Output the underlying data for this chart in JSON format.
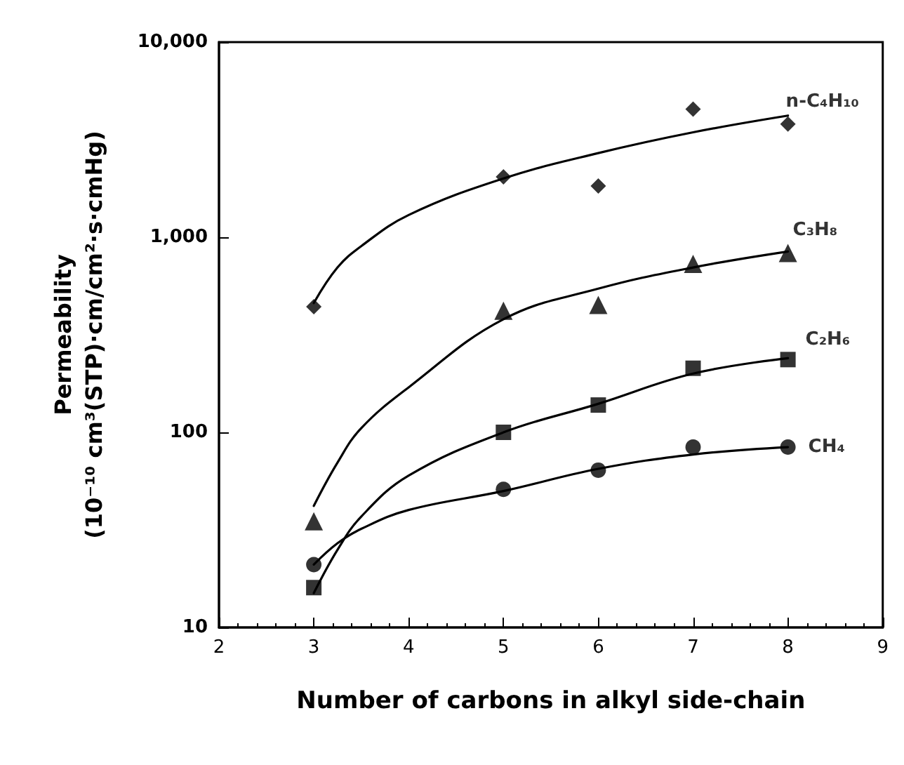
{
  "chart_data": {
    "type": "scatter",
    "xlabel": "Number of carbons in alkyl side-chain",
    "ylabel": "Permeability\n(10⁻¹⁰ cm³(STP)·cm/cm²·s·cmHg)",
    "log": "y",
    "grid": false,
    "legend": false,
    "xlim": [
      2,
      9
    ],
    "xticks": [
      2,
      3,
      4,
      5,
      6,
      7,
      8,
      9
    ],
    "ylim": [
      10,
      10000
    ],
    "yticks": [
      10,
      100,
      {
        "value": 1000,
        "label": "1,000"
      },
      {
        "value": 10000,
        "label": "10,000"
      }
    ],
    "series": [
      {
        "name": "n-C₄H₁₀",
        "marker": "diamond",
        "color": "#000000",
        "x": [
          3,
          5,
          6,
          7,
          8
        ],
        "values": [
          440,
          2040,
          1830,
          4530,
          3800
        ]
      },
      {
        "name": "C₃H₈",
        "marker": "triangle",
        "color": "#000000",
        "x": [
          3,
          5,
          6,
          7,
          8
        ],
        "values": [
          35,
          420,
          450,
          730,
          830
        ]
      },
      {
        "name": "C₂H₆",
        "marker": "square",
        "color": "#000000",
        "x": [
          3,
          5,
          6,
          7,
          8
        ],
        "values": [
          16,
          100,
          138,
          213,
          236
        ]
      },
      {
        "name": "CH₄",
        "marker": "circle",
        "color": "#000000",
        "x": [
          3,
          5,
          6,
          7,
          8
        ],
        "values": [
          21,
          51,
          64,
          84,
          84
        ]
      },
      {
        "type": "line",
        "marker": "none",
        "color": "#000000",
        "x": [
          3,
          3.25,
          3.5,
          4,
          5,
          6,
          7,
          8
        ],
        "values": [
          460,
          700,
          900,
          1300,
          2000,
          2700,
          3450,
          4200
        ]
      },
      {
        "type": "line",
        "marker": "none",
        "color": "#000000",
        "x": [
          3,
          3.25,
          3.5,
          4,
          5,
          6,
          7,
          8
        ],
        "values": [
          42,
          70,
          105,
          170,
          380,
          545,
          700,
          845
        ]
      },
      {
        "type": "line",
        "marker": "none",
        "color": "#000000",
        "x": [
          3,
          3.25,
          3.5,
          4,
          5,
          6,
          7,
          8
        ],
        "values": [
          15,
          25,
          37,
          60,
          100,
          140,
          200,
          240
        ]
      },
      {
        "type": "line",
        "marker": "none",
        "color": "#000000",
        "x": [
          3,
          3.25,
          3.5,
          4,
          5,
          6,
          7,
          8
        ],
        "values": [
          21,
          27,
          32,
          40,
          50,
          65,
          77,
          84
        ]
      }
    ]
  }
}
